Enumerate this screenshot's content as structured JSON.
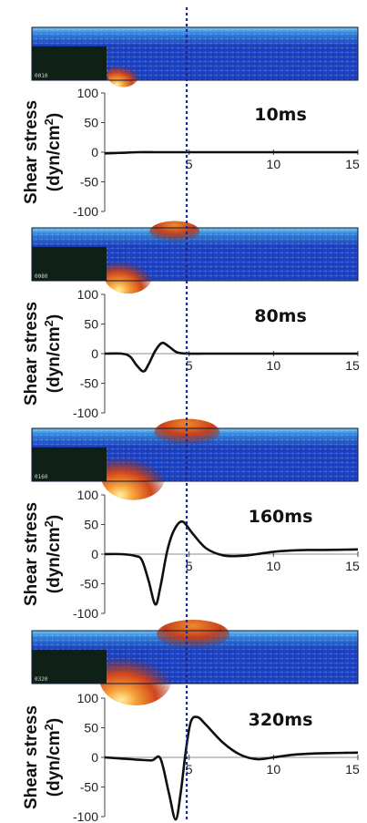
{
  "colors": {
    "curve": "#0b120b",
    "divider": "#1c2a8a",
    "sim_deep": "#1a3fbf",
    "sim_light": "#4db3ee",
    "sim_step": "#0f2016",
    "sim_hot": "#e34a1a"
  },
  "chart_data": [
    {
      "type": "line",
      "time_label": "10ms",
      "ylabel": "Shear stress",
      "ylabel_units": "(dyn/cm2)",
      "sim_label": "0010",
      "xlim": [
        0,
        15
      ],
      "ylim": [
        -100,
        100
      ],
      "xticks": [
        "5",
        "10",
        "15"
      ],
      "yticks": [
        "100",
        "50",
        "0",
        "-50",
        "-100"
      ],
      "series": [
        {
          "x": [
            0,
            1,
            2,
            3,
            4,
            5,
            6,
            7,
            8,
            9,
            10,
            11,
            12,
            13,
            14,
            15
          ],
          "y": [
            -2,
            -1,
            0,
            0,
            0,
            0,
            0,
            0,
            0,
            0,
            0,
            0,
            0,
            0,
            0,
            0
          ]
        }
      ]
    },
    {
      "type": "line",
      "time_label": "80ms",
      "ylabel": "Shear stress",
      "ylabel_units": "(dyn/cm2)",
      "sim_label": "0080",
      "xlim": [
        0,
        15
      ],
      "ylim": [
        -100,
        100
      ],
      "xticks": [
        "5",
        "10",
        "15"
      ],
      "yticks": [
        "100",
        "50",
        "0",
        "-50",
        "-100"
      ],
      "series": [
        {
          "x": [
            0,
            1,
            1.5,
            1.9,
            2.3,
            2.6,
            3,
            3.4,
            3.8,
            4.3,
            5,
            6,
            8,
            10,
            12,
            15
          ],
          "y": [
            0,
            0,
            -5,
            -20,
            -30,
            -18,
            5,
            18,
            12,
            2,
            0,
            0,
            0,
            0,
            0,
            0
          ]
        }
      ]
    },
    {
      "type": "line",
      "time_label": "160ms",
      "ylabel": "Shear stress",
      "ylabel_units": "(dyn/cm2)",
      "sim_label": "0160",
      "xlim": [
        0,
        15
      ],
      "ylim": [
        -100,
        100
      ],
      "xticks": [
        "5",
        "10",
        "15"
      ],
      "yticks": [
        "100",
        "50",
        "0",
        "-50",
        "-100"
      ],
      "series": [
        {
          "x": [
            0,
            1,
            1.8,
            2.2,
            2.6,
            3,
            3.3,
            3.7,
            4.1,
            4.6,
            5.2,
            6,
            7,
            8,
            9,
            10,
            11,
            12,
            13,
            15
          ],
          "y": [
            0,
            0,
            -3,
            -10,
            -45,
            -85,
            -55,
            5,
            40,
            55,
            35,
            10,
            -2,
            -3,
            0,
            4,
            6,
            7,
            7,
            8
          ]
        }
      ]
    },
    {
      "type": "line",
      "time_label": "320ms",
      "ylabel": "Shear stress",
      "ylabel_units": "(dyn/cm2)",
      "sim_label": "0320",
      "xlim": [
        0,
        15
      ],
      "ylim": [
        -100,
        100
      ],
      "xticks": [
        "5",
        "10",
        "15"
      ],
      "yticks": [
        "100",
        "50",
        "0",
        "-50",
        "-100"
      ],
      "series": [
        {
          "x": [
            0,
            1,
            2,
            2.8,
            3.3,
            3.8,
            4.2,
            4.5,
            4.8,
            5.1,
            5.5,
            6,
            7,
            8,
            9,
            10,
            11,
            12,
            13,
            15
          ],
          "y": [
            0,
            -2,
            -4,
            -5,
            -2,
            -60,
            -105,
            -60,
            10,
            60,
            68,
            55,
            25,
            5,
            -3,
            0,
            4,
            6,
            7,
            8
          ]
        }
      ]
    }
  ]
}
